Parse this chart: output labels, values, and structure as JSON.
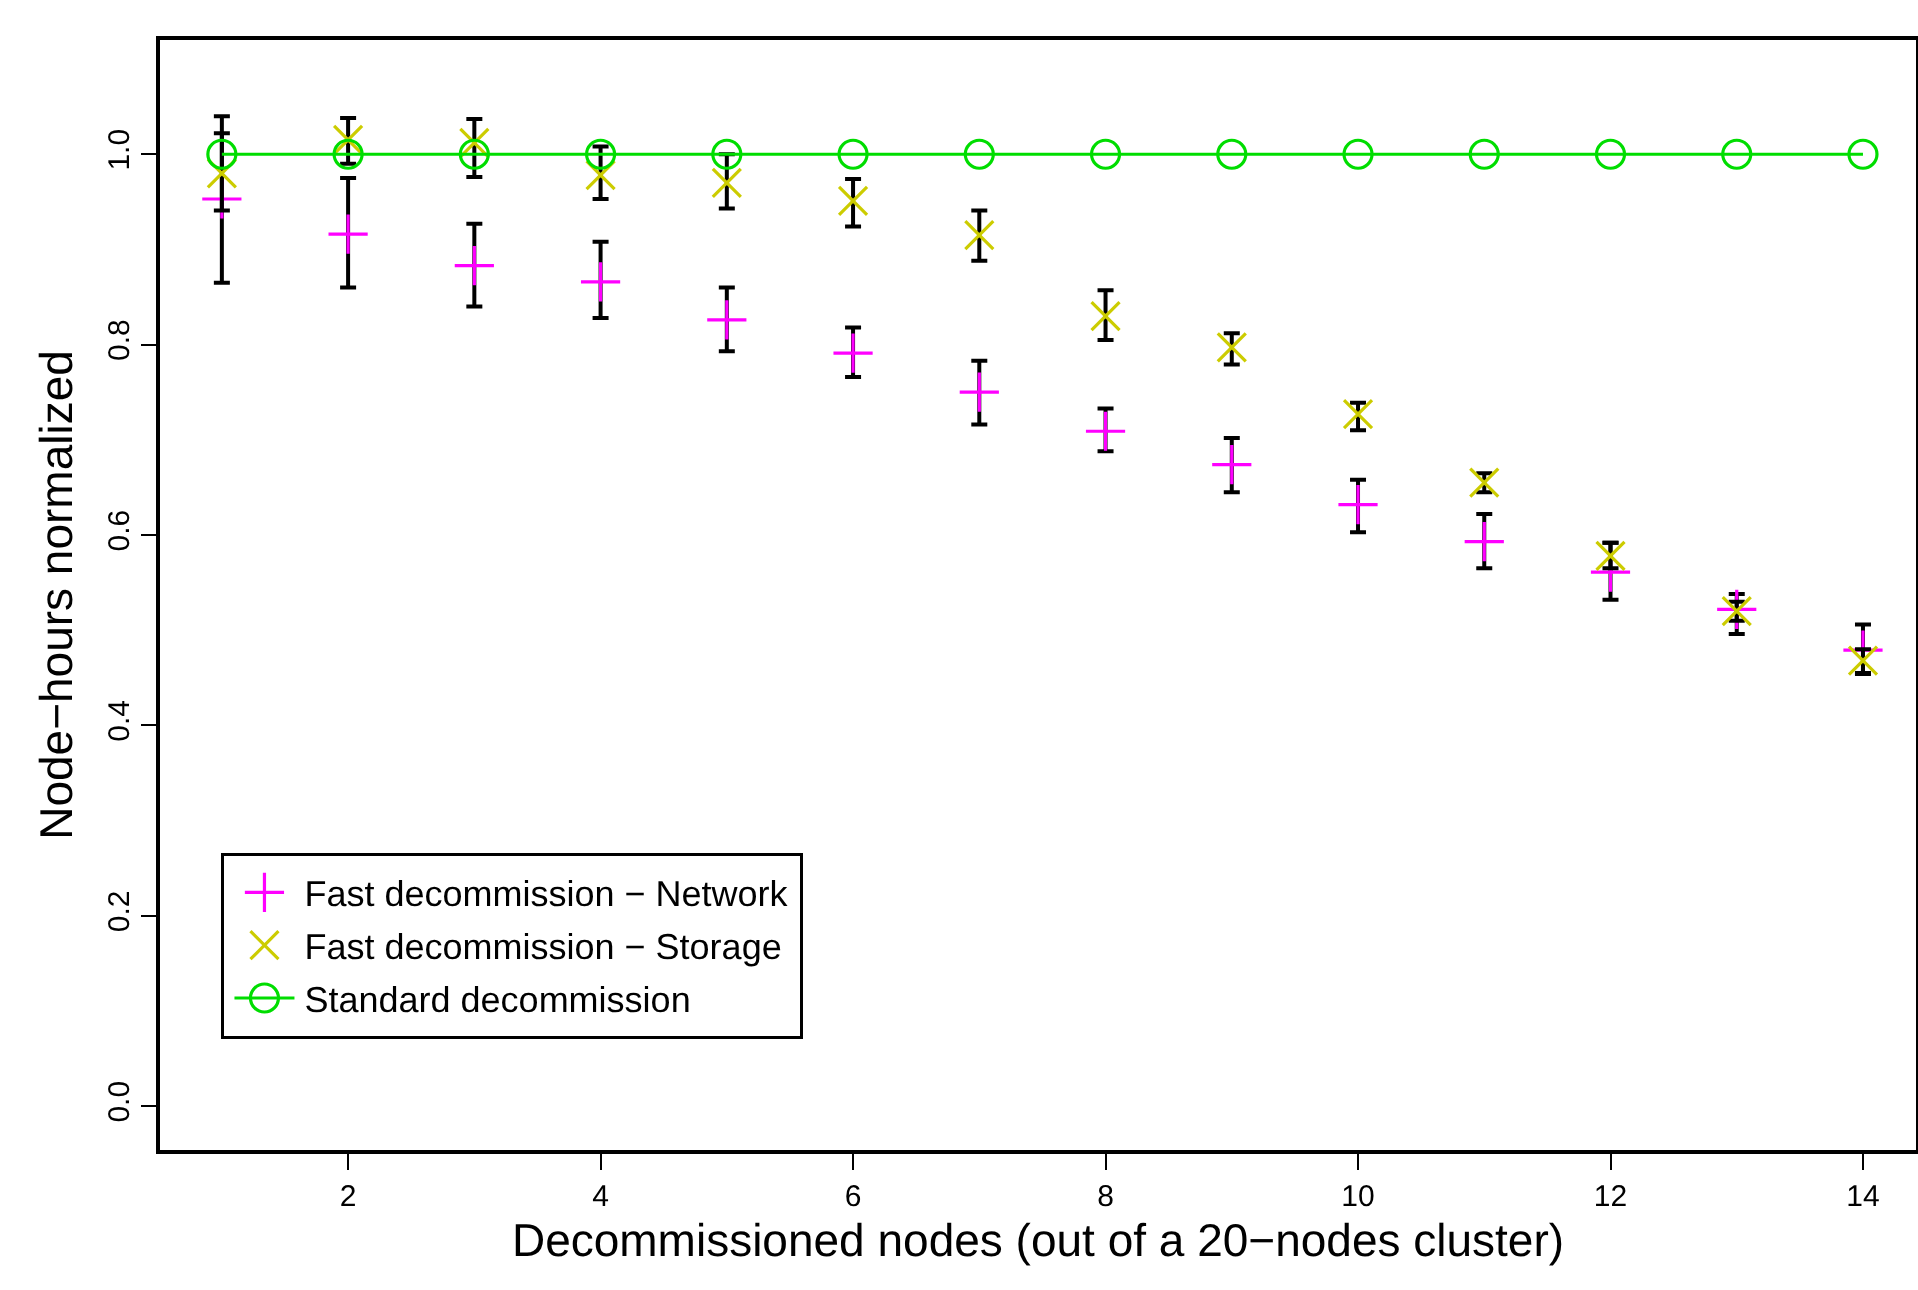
{
  "chart_data": {
    "type": "scatter",
    "xlabel": "Decommissioned nodes (out of a 20−nodes cluster)",
    "ylabel": "Node−hours normalized",
    "x": [
      1,
      2,
      3,
      4,
      5,
      6,
      7,
      8,
      9,
      10,
      11,
      12,
      13,
      14
    ],
    "xlim": [
      0.51,
      14.42
    ],
    "xticks": [
      2,
      4,
      6,
      8,
      10,
      12,
      14
    ],
    "ylim": [
      -0.046,
      1.12
    ],
    "yticks": [
      {
        "value": 0,
        "label": "0.0"
      },
      {
        "value": 0.2,
        "label": "0.2"
      },
      {
        "value": 0.4,
        "label": "0.4"
      },
      {
        "value": 0.6,
        "label": "0.6"
      },
      {
        "value": 0.8,
        "label": "0.8"
      },
      {
        "value": 1,
        "label": "1.0"
      }
    ],
    "grid": false,
    "legend": "bottom left",
    "series": [
      {
        "name": "Fast decommission − Network",
        "marker": "plus",
        "color": "#ff00ff",
        "values": [
          0.953,
          0.916,
          0.883,
          0.866,
          0.826,
          0.791,
          0.75,
          0.709,
          0.674,
          0.632,
          0.593,
          0.561,
          0.522,
          0.479
        ],
        "errors": [
          [
            0.865,
            1.04
          ],
          [
            0.86,
            0.975
          ],
          [
            0.84,
            0.927
          ],
          [
            0.828,
            0.908
          ],
          [
            0.793,
            0.86
          ],
          [
            0.766,
            0.818
          ],
          [
            0.716,
            0.783
          ],
          [
            0.688,
            0.733
          ],
          [
            0.645,
            0.702
          ],
          [
            0.603,
            0.658
          ],
          [
            0.565,
            0.622
          ],
          [
            0.532,
            0.592
          ],
          [
            0.496,
            0.538
          ],
          [
            0.454,
            0.506
          ]
        ]
      },
      {
        "name": "Fast decommission − Storage",
        "marker": "cross",
        "color": "#cccc00",
        "values": [
          0.98,
          1.015,
          1.012,
          0.978,
          0.97,
          0.951,
          0.915,
          0.83,
          0.797,
          0.727,
          0.655,
          0.578,
          0.52,
          0.468
        ],
        "errors": [
          [
            0.941,
            1.022
          ],
          [
            0.99,
            1.038
          ],
          [
            0.976,
            1.037
          ],
          [
            0.953,
            1.008
          ],
          [
            0.943,
            1.0
          ],
          [
            0.924,
            0.974
          ],
          [
            0.888,
            0.941
          ],
          [
            0.805,
            0.857
          ],
          [
            0.779,
            0.812
          ],
          [
            0.71,
            0.739
          ],
          [
            0.645,
            0.665
          ],
          [
            0.565,
            0.592
          ],
          [
            0.51,
            0.53
          ],
          [
            0.455,
            0.48
          ]
        ]
      },
      {
        "name": "Standard decommission",
        "type": "line",
        "marker": "circle",
        "line_style": "solid",
        "color": "#00dd00",
        "values": [
          1,
          1,
          1,
          1,
          1,
          1,
          1,
          1,
          1,
          1,
          1,
          1,
          1,
          1
        ]
      }
    ]
  }
}
